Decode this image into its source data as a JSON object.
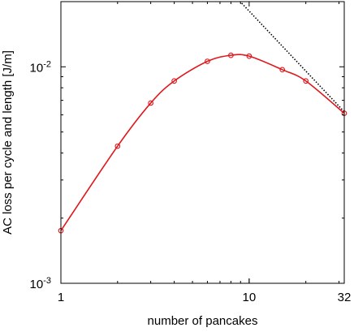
{
  "chart_data": {
    "type": "line",
    "x_scale": "log",
    "y_scale": "log",
    "xlim": [
      1,
      32
    ],
    "ylim": [
      0.001,
      0.02
    ],
    "grid": false,
    "xlabel": "number of pancakes",
    "ylabel": "AC loss per cycle and length [J/m]",
    "x_ticks": [
      {
        "value": 1,
        "label": "1"
      },
      {
        "value": 10,
        "label": "10"
      },
      {
        "value": 32,
        "label": "32"
      }
    ],
    "y_ticks": [
      {
        "value": 0.001,
        "label": "10",
        "exponent": "-3"
      },
      {
        "value": 0.01,
        "label": "10",
        "exponent": "-2"
      }
    ],
    "series": [
      {
        "style": "solid-with-circles",
        "color": "#e0161b",
        "x": [
          1,
          2,
          3,
          4,
          6,
          8,
          10,
          15,
          20,
          32
        ],
        "y": [
          0.00175,
          0.0043,
          0.0068,
          0.0086,
          0.0106,
          0.0113,
          0.0112,
          0.0097,
          0.0086,
          0.0061
        ]
      },
      {
        "style": "dotted",
        "color": "#000000",
        "x": [
          8.5,
          32
        ],
        "y": [
          0.021,
          0.0062
        ]
      }
    ]
  }
}
